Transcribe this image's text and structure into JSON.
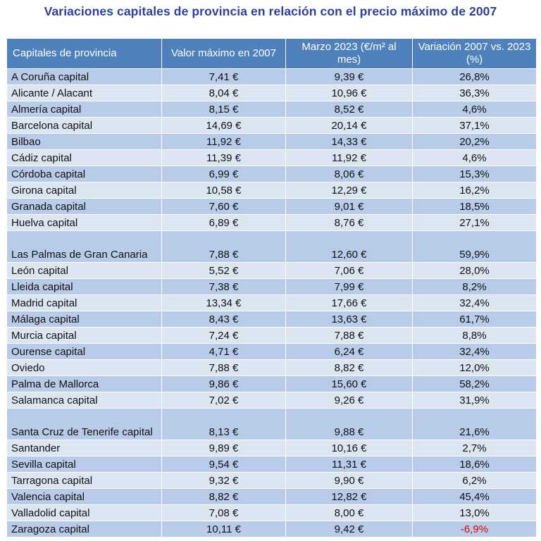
{
  "title": "Variaciones capitales de provincia en relación con el precio máximo de 2007",
  "table": {
    "headers": [
      "Capitales de provincia",
      "Valor máximo en 2007",
      "Marzo 2023 (€/m² al mes)",
      "Variación 2007 vs. 2023 (%)"
    ],
    "rows": [
      {
        "name": "A Coruña capital",
        "max2007": "7,41 €",
        "mar2023": "9,39 €",
        "variation": "26,8%"
      },
      {
        "name": "Alicante / Alacant",
        "max2007": "8,04 €",
        "mar2023": "10,96 €",
        "variation": "36,3%"
      },
      {
        "name": "Almería capital",
        "max2007": "8,15 €",
        "mar2023": "8,52 €",
        "variation": "4,6%"
      },
      {
        "name": "Barcelona capital",
        "max2007": "14,69 €",
        "mar2023": "20,14 €",
        "variation": "37,1%"
      },
      {
        "name": "Bilbao",
        "max2007": "11,92 €",
        "mar2023": "14,33 €",
        "variation": "20,2%"
      },
      {
        "name": "Cádiz capital",
        "max2007": "11,39 €",
        "mar2023": "11,92 €",
        "variation": "4,6%"
      },
      {
        "name": "Córdoba capital",
        "max2007": "6,99 €",
        "mar2023": "8,06 €",
        "variation": "15,3%"
      },
      {
        "name": "Girona capital",
        "max2007": "10,58 €",
        "mar2023": "12,29 €",
        "variation": "16,2%"
      },
      {
        "name": "Granada capital",
        "max2007": "7,60 €",
        "mar2023": "9,01 €",
        "variation": "18,5%"
      },
      {
        "name": "Huelva capital",
        "max2007": "6,89 €",
        "mar2023": "8,76 €",
        "variation": "27,1%"
      },
      {
        "name": "Las Palmas de Gran Canaria",
        "max2007": "7,88 €",
        "mar2023": "12,60 €",
        "variation": "59,9%"
      },
      {
        "name": "León capital",
        "max2007": "5,52 €",
        "mar2023": "7,06 €",
        "variation": "28,0%"
      },
      {
        "name": "Lleida capital",
        "max2007": "7,38 €",
        "mar2023": "7,99 €",
        "variation": "8,2%"
      },
      {
        "name": "Madrid capital",
        "max2007": "13,34 €",
        "mar2023": "17,66 €",
        "variation": "32,4%"
      },
      {
        "name": "Málaga capital",
        "max2007": "8,43 €",
        "mar2023": "13,63 €",
        "variation": "61,7%"
      },
      {
        "name": "Murcia capital",
        "max2007": "7,24 €",
        "mar2023": "7,88 €",
        "variation": "8,8%"
      },
      {
        "name": "Ourense capital",
        "max2007": "4,71 €",
        "mar2023": "6,24 €",
        "variation": "32,4%"
      },
      {
        "name": "Oviedo",
        "max2007": "7,88 €",
        "mar2023": "8,82 €",
        "variation": "12,0%"
      },
      {
        "name": "Palma de Mallorca",
        "max2007": "9,86 €",
        "mar2023": "15,60 €",
        "variation": "58,2%"
      },
      {
        "name": "Salamanca capital",
        "max2007": "7,02 €",
        "mar2023": "9,26 €",
        "variation": "31,9%"
      },
      {
        "name": "Santa Cruz de Tenerife capital",
        "max2007": "8,13 €",
        "mar2023": "9,88 €",
        "variation": "21,6%"
      },
      {
        "name": "Santander",
        "max2007": "9,89 €",
        "mar2023": "10,16 €",
        "variation": "2,7%"
      },
      {
        "name": "Sevilla capital",
        "max2007": "9,54 €",
        "mar2023": "11,31 €",
        "variation": "18,6%"
      },
      {
        "name": "Tarragona capital",
        "max2007": "9,32 €",
        "mar2023": "9,90 €",
        "variation": "6,2%"
      },
      {
        "name": "Valencia capital",
        "max2007": "8,82 €",
        "mar2023": "12,82 €",
        "variation": "45,4%"
      },
      {
        "name": "Valladolid capital",
        "max2007": "7,08 €",
        "mar2023": "8,00 €",
        "variation": "13,0%"
      },
      {
        "name": "Zaragoza capital",
        "max2007": "10,11 €",
        "mar2023": "9,42 €",
        "variation": "-6,9%"
      }
    ]
  },
  "colors": {
    "title": "#2e3f9f",
    "header_bg": "#4f81bd",
    "row_dark": "#b8cbe8",
    "row_light": "#dce6f2",
    "negative": "#e00000"
  }
}
